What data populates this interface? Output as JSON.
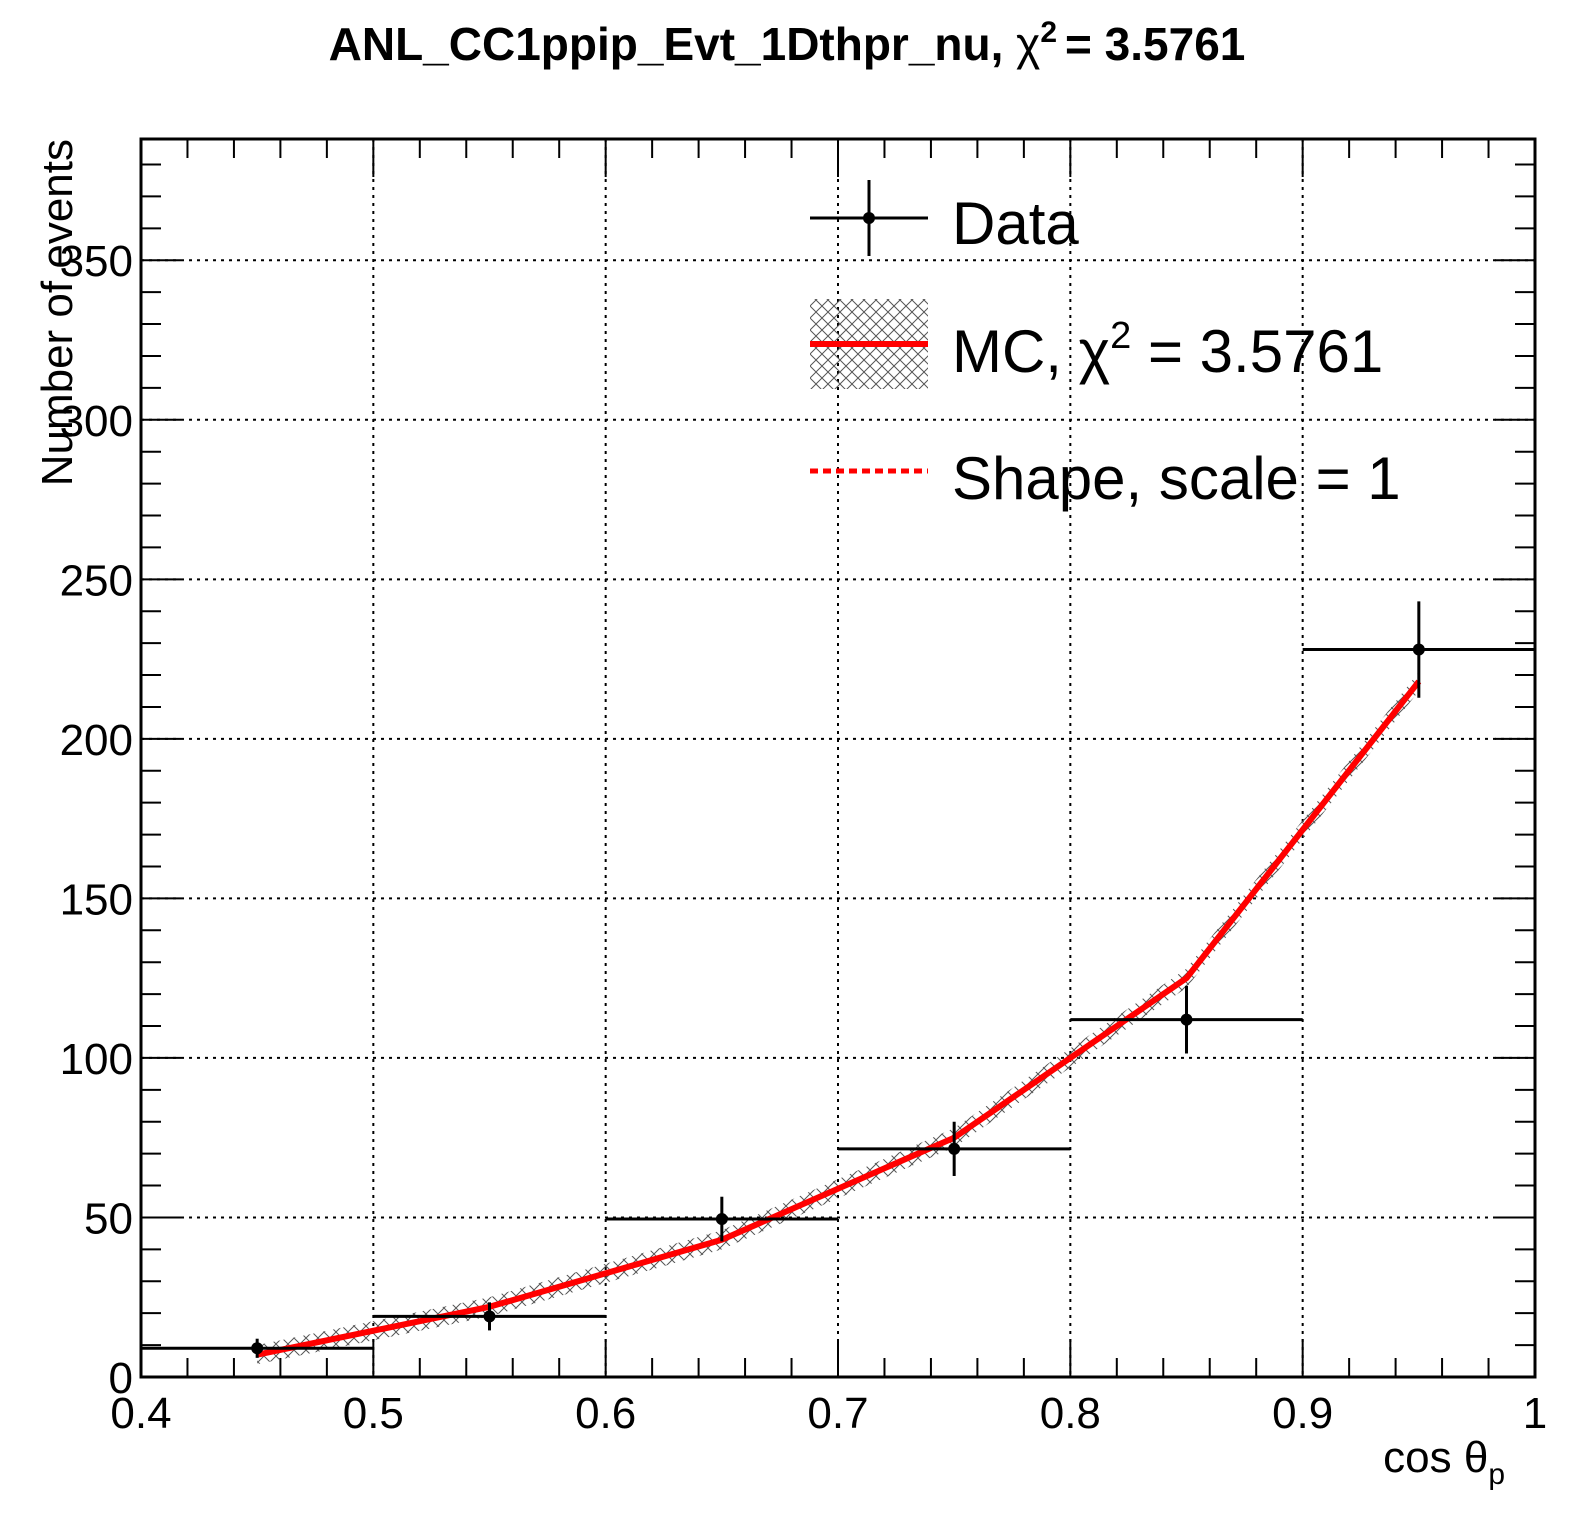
{
  "title": {
    "name": "ANL_CC1ppip_Evt_1Dthpr_nu,",
    "chi": "χ",
    "sup": "2",
    "eq": "= 3.5761"
  },
  "axes": {
    "xlabel": "cos θ",
    "xlabel_sub": "p",
    "ylabel": "Number of events"
  },
  "legend": {
    "data_label": "Data",
    "mc_prefix": "MC, ",
    "mc_chi": "χ",
    "mc_sup": "2",
    "mc_eq": " = 3.5761",
    "shape_label": "Shape, scale = 1"
  },
  "colors": {
    "data": "#000000",
    "mc": "#ff0000",
    "grid": "#000000"
  },
  "chart_data": {
    "type": "line",
    "xlim": [
      0.4,
      1.0
    ],
    "ylim": [
      0,
      388
    ],
    "x_ticks": [
      "0.4",
      "0.5",
      "0.6",
      "0.7",
      "0.8",
      "0.9",
      "1"
    ],
    "x_tick_values": [
      0.4,
      0.5,
      0.6,
      0.7,
      0.8,
      0.9,
      1.0
    ],
    "y_ticks": [
      "0",
      "50",
      "100",
      "150",
      "200",
      "250",
      "300",
      "350"
    ],
    "y_tick_values": [
      0,
      50,
      100,
      150,
      200,
      250,
      300,
      350
    ],
    "grid": true,
    "legend_position": "top-right",
    "series": [
      {
        "name": "Data",
        "kind": "points-with-errors",
        "bin_low": [
          0.4,
          0.5,
          0.6,
          0.7,
          0.8,
          0.9
        ],
        "bin_high": [
          0.5,
          0.6,
          0.7,
          0.8,
          0.9,
          1.0
        ],
        "x": [
          0.45,
          0.55,
          0.65,
          0.75,
          0.85,
          0.95
        ],
        "y": [
          9,
          19,
          49.5,
          71.5,
          112,
          228
        ],
        "yerr": [
          3,
          4.4,
          7,
          8.5,
          10.6,
          15.1
        ]
      },
      {
        "name": "MC",
        "kind": "line",
        "x": [
          0.45,
          0.55,
          0.65,
          0.75,
          0.85,
          0.95
        ],
        "y": [
          7,
          22,
          43,
          75,
          125,
          218
        ]
      }
    ]
  }
}
